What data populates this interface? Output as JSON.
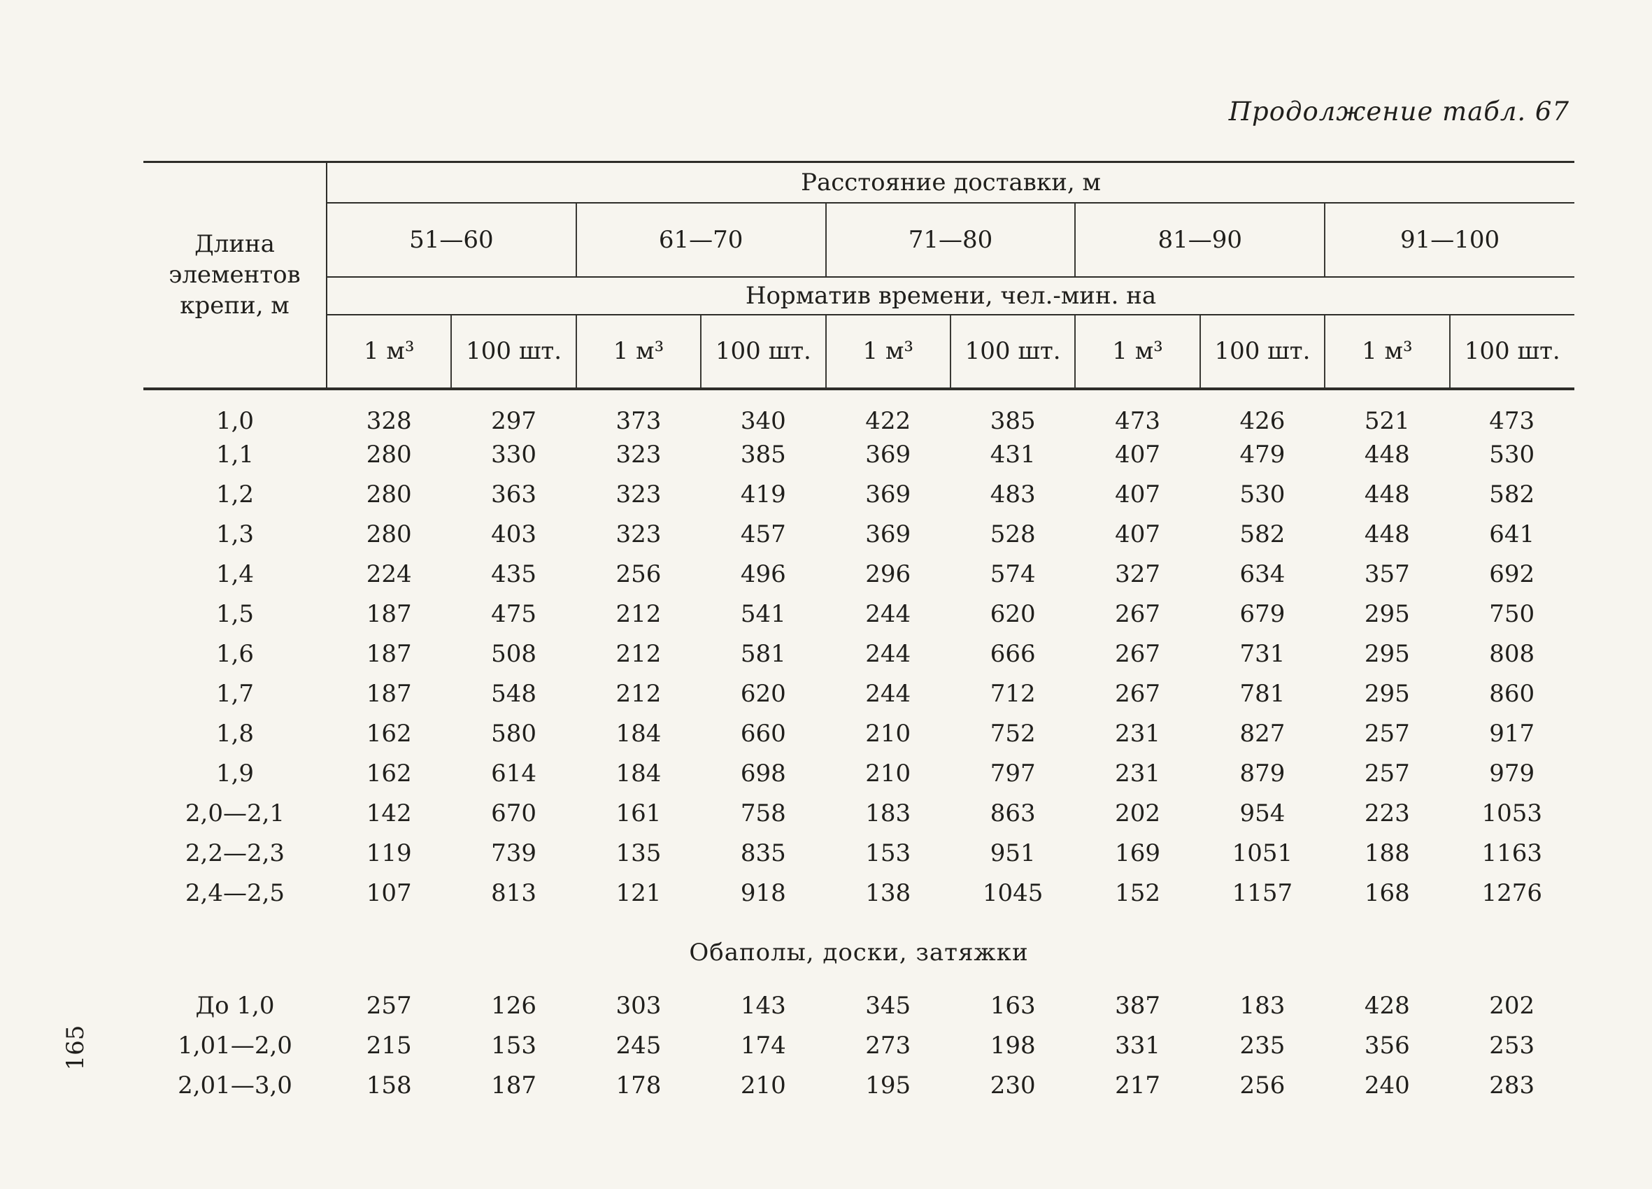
{
  "caption": "Продолжение табл. 67",
  "page_number": "165",
  "table": {
    "corner_header": "Длина\nэлементов\nкрепи, м",
    "distance_header": "Расстояние доставки, м",
    "distance_ranges": [
      "51—60",
      "61—70",
      "71—80",
      "81—90",
      "91—100"
    ],
    "norm_header": "Норматив времени, чел.-мин. на",
    "unit_headers": [
      "1 м³",
      "100 шт."
    ],
    "sections": [
      {
        "title": "",
        "rows": [
          {
            "label": "1,0",
            "values": [
              328,
              297,
              373,
              340,
              422,
              385,
              473,
              426,
              521,
              473
            ]
          },
          {
            "label": "1,1",
            "values": [
              280,
              330,
              323,
              385,
              369,
              431,
              407,
              479,
              448,
              530
            ]
          },
          {
            "label": "1,2",
            "values": [
              280,
              363,
              323,
              419,
              369,
              483,
              407,
              530,
              448,
              582
            ]
          },
          {
            "label": "1,3",
            "values": [
              280,
              403,
              323,
              457,
              369,
              528,
              407,
              582,
              448,
              641
            ]
          },
          {
            "label": "1,4",
            "values": [
              224,
              435,
              256,
              496,
              296,
              574,
              327,
              634,
              357,
              692
            ]
          },
          {
            "label": "1,5",
            "values": [
              187,
              475,
              212,
              541,
              244,
              620,
              267,
              679,
              295,
              750
            ]
          },
          {
            "label": "1,6",
            "values": [
              187,
              508,
              212,
              581,
              244,
              666,
              267,
              731,
              295,
              808
            ]
          },
          {
            "label": "1,7",
            "values": [
              187,
              548,
              212,
              620,
              244,
              712,
              267,
              781,
              295,
              860
            ]
          },
          {
            "label": "1,8",
            "values": [
              162,
              580,
              184,
              660,
              210,
              752,
              231,
              827,
              257,
              917
            ]
          },
          {
            "label": "1,9",
            "values": [
              162,
              614,
              184,
              698,
              210,
              797,
              231,
              879,
              257,
              979
            ]
          },
          {
            "label": "2,0—2,1",
            "values": [
              142,
              670,
              161,
              758,
              183,
              863,
              202,
              954,
              223,
              1053
            ]
          },
          {
            "label": "2,2—2,3",
            "values": [
              119,
              739,
              135,
              835,
              153,
              951,
              169,
              1051,
              188,
              1163
            ]
          },
          {
            "label": "2,4—2,5",
            "values": [
              107,
              813,
              121,
              918,
              138,
              1045,
              152,
              1157,
              168,
              1276
            ]
          }
        ]
      },
      {
        "title": "Обаполы, доски, затяжки",
        "rows": [
          {
            "label": "До 1,0",
            "values": [
              257,
              126,
              303,
              143,
              345,
              163,
              387,
              183,
              428,
              202
            ]
          },
          {
            "label": "1,01—2,0",
            "values": [
              215,
              153,
              245,
              174,
              273,
              198,
              331,
              235,
              356,
              253
            ]
          },
          {
            "label": "2,01—3,0",
            "values": [
              158,
              187,
              178,
              210,
              195,
              230,
              217,
              256,
              240,
              283
            ]
          }
        ]
      }
    ]
  }
}
